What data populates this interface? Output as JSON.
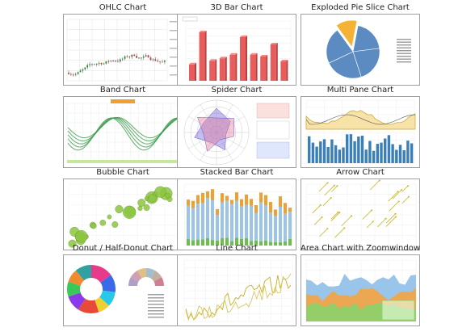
{
  "chart_data": [
    {
      "type": "line",
      "title": "OHLC Chart"
    },
    {
      "type": "bar",
      "title": "3D Bar Chart"
    },
    {
      "type": "pie",
      "title": "Exploded Pie Slice Chart"
    },
    {
      "type": "line",
      "title": "Band Chart"
    },
    {
      "type": "line",
      "title": "Spider Chart"
    },
    {
      "type": "bar",
      "title": "Multi Pane Chart"
    },
    {
      "type": "scatter",
      "title": "Bubble Chart"
    },
    {
      "type": "bar",
      "title": "Stacked Bar Chart"
    },
    {
      "type": "scatter",
      "title": "Arrow Chart"
    },
    {
      "type": "pie",
      "title": "Donut / Half-Donut Chart"
    },
    {
      "type": "line",
      "title": "Line Chart"
    },
    {
      "type": "area",
      "title": "Area Chart with Zoomwindow"
    }
  ],
  "colors": {
    "bar3d": "#e85c5c",
    "pie": "#5b8bc0",
    "pie_exploded": "#f5b335",
    "band": "#3a9a4a",
    "bubble": "#8cc63f",
    "stack_blue": "#9cc4e8",
    "stack_green": "#6cbf4a",
    "stack_orange": "#f0a030",
    "area_blue": "#8fbfe8",
    "area_orange": "#f4a340",
    "area_green": "#8bd36a",
    "multipane_bar": "#3a7fb8",
    "arrow": "#c8b820"
  },
  "icons": {
    "ohlc": "ohlc-candles",
    "arrow": "arrow-glyphs"
  }
}
